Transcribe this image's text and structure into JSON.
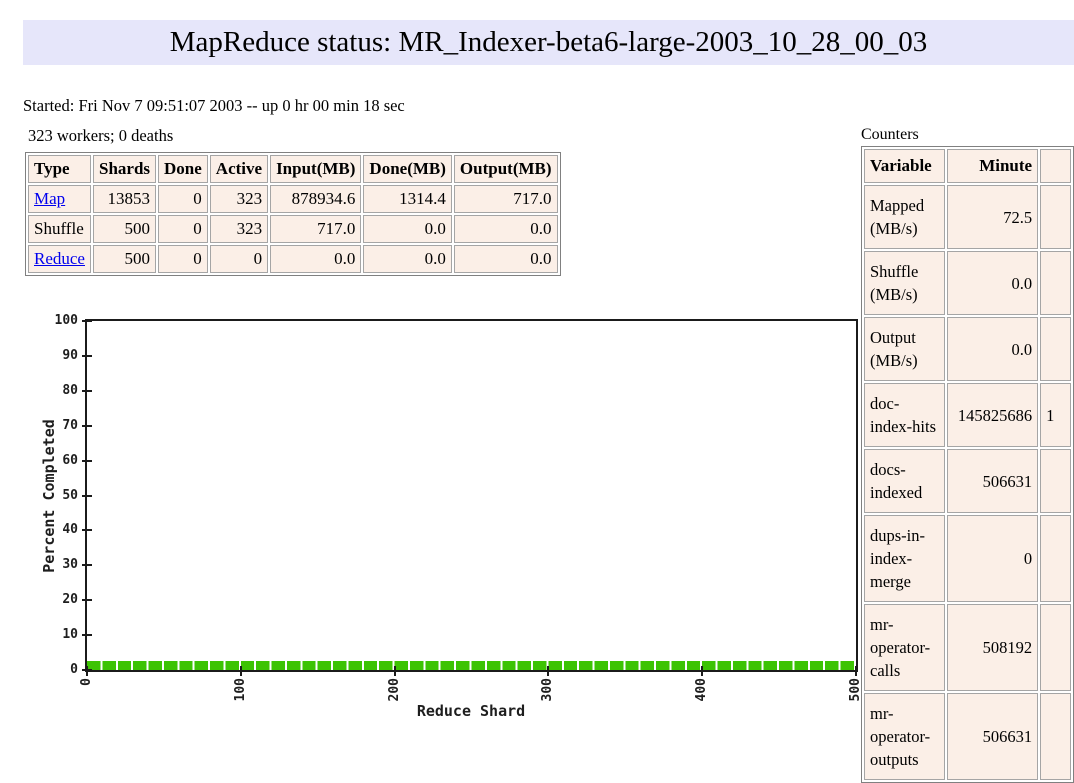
{
  "page": {
    "title": "MapReduce status: MR_Indexer-beta6-large-2003_10_28_00_03"
  },
  "status": {
    "started_line": "Started: Fri Nov 7 09:51:07 2003 -- up 0 hr 00 min 18 sec",
    "workers_line": "323 workers; 0 deaths"
  },
  "shard_table": {
    "headers": [
      "Type",
      "Shards",
      "Done",
      "Active",
      "Input(MB)",
      "Done(MB)",
      "Output(MB)"
    ],
    "rows": [
      {
        "type": "Map",
        "is_link": true,
        "shards": "13853",
        "done": "0",
        "active": "323",
        "input_mb": "878934.6",
        "done_mb": "1314.4",
        "output_mb": "717.0"
      },
      {
        "type": "Shuffle",
        "is_link": false,
        "shards": "500",
        "done": "0",
        "active": "323",
        "input_mb": "717.0",
        "done_mb": "0.0",
        "output_mb": "0.0"
      },
      {
        "type": "Reduce",
        "is_link": true,
        "shards": "500",
        "done": "0",
        "active": "0",
        "input_mb": "0.0",
        "done_mb": "0.0",
        "output_mb": "0.0"
      }
    ]
  },
  "counters": {
    "title": "Counters",
    "headers": [
      "Variable",
      "Minute",
      ""
    ],
    "rows": [
      {
        "variable": "Mapped (MB/s)",
        "minute": "72.5",
        "partial_next_col": ""
      },
      {
        "variable": "Shuffle (MB/s)",
        "minute": "0.0",
        "partial_next_col": ""
      },
      {
        "variable": "Output (MB/s)",
        "minute": "0.0",
        "partial_next_col": ""
      },
      {
        "variable": "doc-index-hits",
        "minute": "145825686",
        "partial_next_col": "1"
      },
      {
        "variable": "docs-indexed",
        "minute": "506631",
        "partial_next_col": ""
      },
      {
        "variable": "dups-in-index-merge",
        "minute": "0",
        "partial_next_col": ""
      },
      {
        "variable": "mr-operator-calls",
        "minute": "508192",
        "partial_next_col": ""
      },
      {
        "variable": "mr-operator-outputs",
        "minute": "506631",
        "partial_next_col": ""
      }
    ]
  },
  "chart_data": {
    "type": "bar",
    "title": "",
    "xlabel": "Reduce Shard",
    "ylabel": "Percent Completed",
    "xlim": [
      0,
      500
    ],
    "ylim": [
      0,
      100
    ],
    "xticks": [
      0,
      100,
      200,
      300,
      400,
      500
    ],
    "yticks": [
      0,
      10,
      20,
      30,
      40,
      50,
      60,
      70,
      80,
      90,
      100
    ],
    "num_visible_bar_segments": 50,
    "bar_value_percent": 2.5,
    "note": "All 500 reduce shards at ~2.5% completion; rendered as 50 uniform green segments with white gaps",
    "grid": false,
    "legend": "none"
  },
  "colors": {
    "title_bg": "#E6E6FA",
    "cell_bg": "#FBEFE7",
    "link": "#0000EE",
    "bar_green": "#3DC303",
    "axis": "#1b1b1b"
  }
}
